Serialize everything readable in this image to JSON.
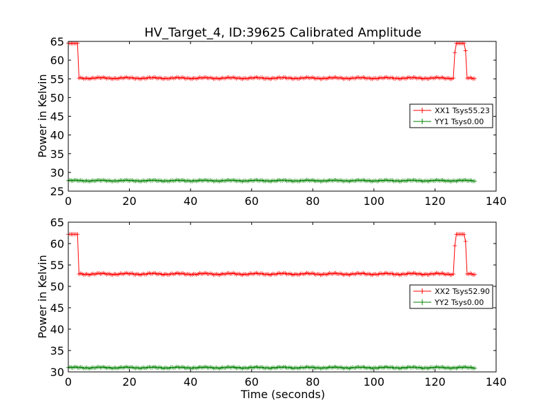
{
  "chart_data": [
    {
      "type": "line",
      "title": "HV_Target_4, ID:39625 Calibrated Amplitude",
      "xlabel": "",
      "ylabel": "Power in Kelvin",
      "xlim": [
        0,
        140
      ],
      "ylim": [
        25,
        65
      ],
      "xticks": [
        "0",
        "20",
        "40",
        "60",
        "80",
        "100",
        "120",
        "140"
      ],
      "yticks": [
        "25",
        "30",
        "35",
        "40",
        "45",
        "50",
        "55",
        "60",
        "65"
      ],
      "legend_position": "center-right",
      "grid": false,
      "x": {
        "start": 0.0,
        "end": 133.0,
        "step": 0.5
      },
      "series": [
        {
          "name": "XX1 Tsys55.23",
          "color": "#ff0000",
          "marker": "+",
          "baseline": 55.2,
          "variation": 0.25,
          "high_value": 64.5,
          "high_segments": [
            [
              0.0,
              3.0
            ],
            [
              127.0,
              129.5
            ]
          ],
          "ramps": [
            [
              3.0,
              62.0
            ],
            [
              126.5,
              62.0
            ],
            [
              130.0,
              62.5
            ]
          ]
        },
        {
          "name": "YY1 Tsys0.00",
          "color": "#008000",
          "marker": "+",
          "baseline": 27.8,
          "variation": 0.2
        }
      ]
    },
    {
      "type": "line",
      "title": "",
      "xlabel": "Time (seconds)",
      "ylabel": "Power in Kelvin",
      "xlim": [
        0,
        140
      ],
      "ylim": [
        30,
        65
      ],
      "xticks": [
        "0",
        "20",
        "40",
        "60",
        "80",
        "100",
        "120",
        "140"
      ],
      "yticks": [
        "30",
        "35",
        "40",
        "45",
        "50",
        "55",
        "60",
        "65"
      ],
      "legend_position": "center-right",
      "grid": false,
      "x": {
        "start": 0.0,
        "end": 133.0,
        "step": 0.5
      },
      "series": [
        {
          "name": "XX2 Tsys52.90",
          "color": "#ff0000",
          "marker": "+",
          "baseline": 52.9,
          "variation": 0.25,
          "high_value": 62.2,
          "high_segments": [
            [
              0.0,
              3.0
            ],
            [
              127.0,
              129.5
            ]
          ],
          "ramps": [
            [
              3.0,
              59.5
            ],
            [
              126.5,
              59.5
            ],
            [
              130.0,
              60.5
            ]
          ]
        },
        {
          "name": "YY2 Tsys0.00",
          "color": "#008000",
          "marker": "+",
          "baseline": 31.0,
          "variation": 0.2
        }
      ]
    }
  ]
}
